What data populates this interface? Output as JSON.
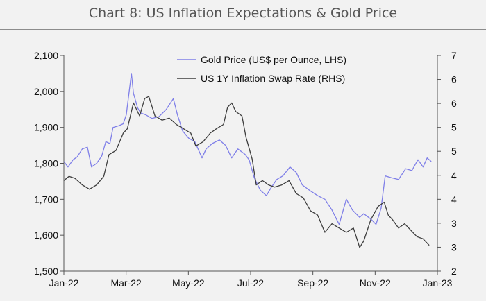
{
  "title": "Chart 8: US Inflation Expectations & Gold Price",
  "chart_data": {
    "type": "line",
    "x_ticks": [
      "Jan-22",
      "Mar-22",
      "May-22",
      "Jul-22",
      "Sep-22",
      "Nov-22",
      "Jan-23"
    ],
    "x_range": [
      "2022-01-01",
      "2023-01-01"
    ],
    "y_left": {
      "ticks": [
        "1,500",
        "1,600",
        "1,700",
        "1,800",
        "1,900",
        "2,000",
        "2,100"
      ],
      "range": [
        1500,
        2100
      ]
    },
    "y_right": {
      "ticks": [
        "2",
        "3",
        "3",
        "4",
        "4",
        "5",
        "5",
        "6",
        "6",
        "7"
      ],
      "range": [
        2,
        7
      ]
    },
    "grid": false,
    "legend_position": "top-right",
    "series": [
      {
        "name": "Gold Price (US$ per Ounce, LHS)",
        "axis": "left",
        "color": "#7f7fe8",
        "points": [
          [
            "2022-01-01",
            1805
          ],
          [
            "2022-01-05",
            1790
          ],
          [
            "2022-01-10",
            1810
          ],
          [
            "2022-01-14",
            1818
          ],
          [
            "2022-01-19",
            1840
          ],
          [
            "2022-01-24",
            1845
          ],
          [
            "2022-01-28",
            1790
          ],
          [
            "2022-02-02",
            1800
          ],
          [
            "2022-02-07",
            1820
          ],
          [
            "2022-02-11",
            1860
          ],
          [
            "2022-02-15",
            1855
          ],
          [
            "2022-02-18",
            1900
          ],
          [
            "2022-02-24",
            1905
          ],
          [
            "2022-02-28",
            1910
          ],
          [
            "2022-03-03",
            1935
          ],
          [
            "2022-03-08",
            2050
          ],
          [
            "2022-03-10",
            1995
          ],
          [
            "2022-03-14",
            1955
          ],
          [
            "2022-03-17",
            1940
          ],
          [
            "2022-03-22",
            1935
          ],
          [
            "2022-03-28",
            1925
          ],
          [
            "2022-04-04",
            1930
          ],
          [
            "2022-04-11",
            1950
          ],
          [
            "2022-04-18",
            1980
          ],
          [
            "2022-04-22",
            1935
          ],
          [
            "2022-04-27",
            1890
          ],
          [
            "2022-05-03",
            1870
          ],
          [
            "2022-05-09",
            1860
          ],
          [
            "2022-05-16",
            1815
          ],
          [
            "2022-05-20",
            1840
          ],
          [
            "2022-05-26",
            1855
          ],
          [
            "2022-06-02",
            1865
          ],
          [
            "2022-06-08",
            1850
          ],
          [
            "2022-06-14",
            1815
          ],
          [
            "2022-06-20",
            1840
          ],
          [
            "2022-06-27",
            1825
          ],
          [
            "2022-07-01",
            1810
          ],
          [
            "2022-07-06",
            1760
          ],
          [
            "2022-07-12",
            1725
          ],
          [
            "2022-07-18",
            1710
          ],
          [
            "2022-07-22",
            1730
          ],
          [
            "2022-07-28",
            1755
          ],
          [
            "2022-08-03",
            1765
          ],
          [
            "2022-08-10",
            1790
          ],
          [
            "2022-08-16",
            1775
          ],
          [
            "2022-08-22",
            1740
          ],
          [
            "2022-08-29",
            1725
          ],
          [
            "2022-09-06",
            1710
          ],
          [
            "2022-09-13",
            1700
          ],
          [
            "2022-09-20",
            1670
          ],
          [
            "2022-09-27",
            1630
          ],
          [
            "2022-10-04",
            1700
          ],
          [
            "2022-10-10",
            1670
          ],
          [
            "2022-10-17",
            1650
          ],
          [
            "2022-10-21",
            1660
          ],
          [
            "2022-10-28",
            1645
          ],
          [
            "2022-11-02",
            1630
          ],
          [
            "2022-11-07",
            1675
          ],
          [
            "2022-11-11",
            1765
          ],
          [
            "2022-11-17",
            1760
          ],
          [
            "2022-11-24",
            1755
          ],
          [
            "2022-12-01",
            1785
          ],
          [
            "2022-12-07",
            1780
          ],
          [
            "2022-12-13",
            1810
          ],
          [
            "2022-12-18",
            1790
          ],
          [
            "2022-12-22",
            1815
          ],
          [
            "2022-12-26",
            1805
          ]
        ]
      },
      {
        "name": "US 1Y Inflation Swap Rate (RHS)",
        "axis": "right",
        "color": "#3d3d3d",
        "points": [
          [
            "2022-01-01",
            4.1
          ],
          [
            "2022-01-06",
            4.2
          ],
          [
            "2022-01-12",
            4.15
          ],
          [
            "2022-01-19",
            4.0
          ],
          [
            "2022-01-26",
            3.9
          ],
          [
            "2022-02-02",
            4.0
          ],
          [
            "2022-02-09",
            4.2
          ],
          [
            "2022-02-14",
            4.7
          ],
          [
            "2022-02-21",
            4.8
          ],
          [
            "2022-02-28",
            5.2
          ],
          [
            "2022-03-04",
            5.3
          ],
          [
            "2022-03-10",
            5.9
          ],
          [
            "2022-03-16",
            5.6
          ],
          [
            "2022-03-21",
            6.0
          ],
          [
            "2022-03-25",
            6.05
          ],
          [
            "2022-03-31",
            5.6
          ],
          [
            "2022-04-07",
            5.5
          ],
          [
            "2022-04-14",
            5.55
          ],
          [
            "2022-04-21",
            5.4
          ],
          [
            "2022-04-28",
            5.3
          ],
          [
            "2022-05-05",
            5.2
          ],
          [
            "2022-05-10",
            4.9
          ],
          [
            "2022-05-17",
            5.0
          ],
          [
            "2022-05-24",
            5.2
          ],
          [
            "2022-05-30",
            5.3
          ],
          [
            "2022-06-06",
            5.4
          ],
          [
            "2022-06-10",
            5.8
          ],
          [
            "2022-06-14",
            5.9
          ],
          [
            "2022-06-18",
            5.7
          ],
          [
            "2022-06-24",
            5.6
          ],
          [
            "2022-06-28",
            5.1
          ],
          [
            "2022-07-04",
            4.6
          ],
          [
            "2022-07-08",
            4.0
          ],
          [
            "2022-07-14",
            4.1
          ],
          [
            "2022-07-20",
            4.0
          ],
          [
            "2022-07-26",
            3.95
          ],
          [
            "2022-08-02",
            4.0
          ],
          [
            "2022-08-09",
            4.1
          ],
          [
            "2022-08-16",
            3.8
          ],
          [
            "2022-08-23",
            3.7
          ],
          [
            "2022-08-30",
            3.4
          ],
          [
            "2022-09-06",
            3.3
          ],
          [
            "2022-09-13",
            2.9
          ],
          [
            "2022-09-20",
            3.1
          ],
          [
            "2022-09-27",
            3.0
          ],
          [
            "2022-10-04",
            2.9
          ],
          [
            "2022-10-11",
            3.0
          ],
          [
            "2022-10-17",
            2.55
          ],
          [
            "2022-10-21",
            2.7
          ],
          [
            "2022-10-28",
            3.2
          ],
          [
            "2022-11-04",
            3.5
          ],
          [
            "2022-11-10",
            3.6
          ],
          [
            "2022-11-14",
            3.3
          ],
          [
            "2022-11-18",
            3.2
          ],
          [
            "2022-11-24",
            3.0
          ],
          [
            "2022-11-30",
            3.1
          ],
          [
            "2022-12-06",
            2.95
          ],
          [
            "2022-12-12",
            2.8
          ],
          [
            "2022-12-18",
            2.75
          ],
          [
            "2022-12-24",
            2.6
          ]
        ]
      }
    ]
  }
}
